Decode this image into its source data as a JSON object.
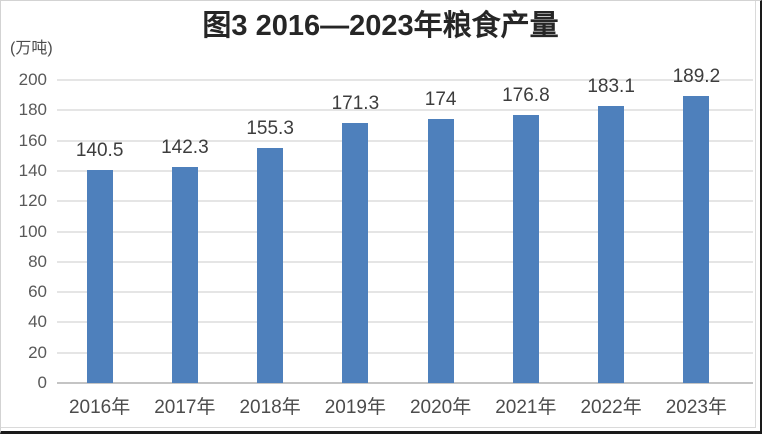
{
  "chart_data": {
    "type": "bar",
    "title": "图3 2016—2023年粮食产量",
    "unit_label": "(万吨)",
    "categories": [
      "2016年",
      "2017年",
      "2018年",
      "2019年",
      "2020年",
      "2021年",
      "2022年",
      "2023年"
    ],
    "values": [
      140.5,
      142.3,
      155.3,
      171.3,
      174,
      176.8,
      183.1,
      189.2
    ],
    "data_labels": [
      "140.5",
      "142.3",
      "155.3",
      "171.3",
      "174",
      "176.8",
      "183.1",
      "189.2"
    ],
    "y_ticks": [
      0,
      20,
      40,
      60,
      80,
      100,
      120,
      140,
      160,
      180,
      200
    ],
    "ylim": [
      0,
      200
    ],
    "xlabel": "",
    "ylabel": "",
    "grid": true,
    "legend": false,
    "bar_color": "#4e80bc",
    "gridline_color": "#e5e5e5",
    "baseline_color": "#c4c4c4"
  }
}
